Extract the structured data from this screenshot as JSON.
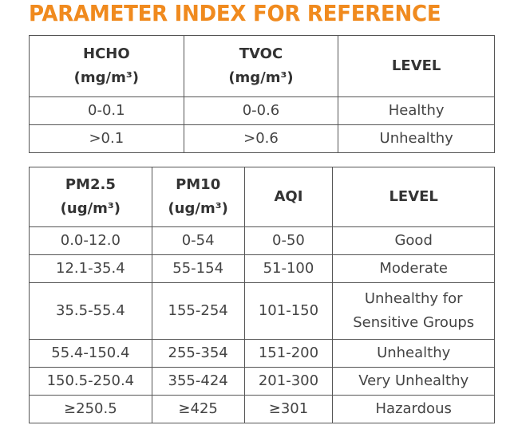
{
  "title": "PARAMETER INDEX FOR REFERENCE",
  "table1": {
    "headers": [
      {
        "line1": "HCHO",
        "line2": "(mg/m³)"
      },
      {
        "line1": "TVOC",
        "line2": "(mg/m³)"
      },
      {
        "line1": "LEVEL",
        "line2": ""
      }
    ],
    "rows": [
      [
        "0-0.1",
        "0-0.6",
        "Healthy"
      ],
      [
        ">0.1",
        ">0.6",
        "Unhealthy"
      ]
    ]
  },
  "table2": {
    "headers": [
      {
        "line1": "PM2.5",
        "line2": "(ug/m³)"
      },
      {
        "line1": "PM10",
        "line2": "(ug/m³)"
      },
      {
        "line1": "AQI",
        "line2": ""
      },
      {
        "line1": "LEVEL",
        "line2": ""
      }
    ],
    "rows": [
      [
        "0.0-12.0",
        "0-54",
        "0-50",
        "Good"
      ],
      [
        "12.1-35.4",
        "55-154",
        "51-100",
        "Moderate"
      ],
      [
        "35.5-55.4",
        "155-254",
        "101-150",
        "Unhealthy for Sensitive Groups"
      ],
      [
        "55.4-150.4",
        "255-354",
        "151-200",
        "Unhealthy"
      ],
      [
        "150.5-250.4",
        "355-424",
        "201-300",
        "Very Unhealthy"
      ],
      [
        "≥250.5",
        "≥425",
        "≥301",
        "Hazardous"
      ]
    ],
    "row3_level_lines": [
      "Unhealthy for",
      "Sensitive Groups"
    ]
  }
}
